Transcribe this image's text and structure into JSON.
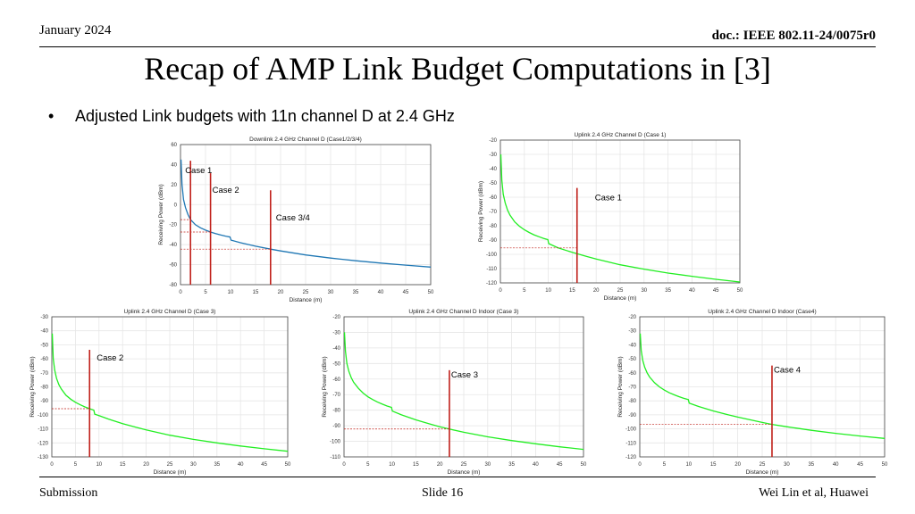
{
  "header": {
    "date": "January 2024",
    "doc": "doc.: IEEE 802.11-24/0075r0"
  },
  "title": "Recap of AMP Link Budget Computations in [3]",
  "bullet": {
    "marker": "•",
    "text": "Adjusted Link budgets with 11n channel D at 2.4 GHz"
  },
  "footer": {
    "left": "Submission",
    "center": "Slide 16",
    "right": "Wei Lin et al, Huawei"
  },
  "colors": {
    "downlink": "#1f77b4",
    "uplink": "#22ee22",
    "marker": "#c0201a",
    "grid": "#e6e6e6"
  },
  "chart_data": [
    {
      "type": "line",
      "title": "Downlink 2.4 GHz Channel D (Case1/2/3/4)",
      "xlabel": "Distance (m)",
      "ylabel": "Receiving Power (dBm)",
      "xlim": [
        0,
        50
      ],
      "ylim": [
        -80,
        60
      ],
      "xticks": [
        0,
        5,
        10,
        15,
        20,
        25,
        30,
        35,
        40,
        45,
        50
      ],
      "yticks": [
        60,
        40,
        20,
        0,
        -20,
        -40,
        -60,
        -80
      ],
      "grid": true,
      "color_key": "downlink",
      "series": [
        {
          "x": [
            0.1,
            0.3,
            0.6,
            1,
            1.5,
            2,
            3,
            4,
            5,
            6,
            7,
            8,
            9,
            9.9,
            10.1,
            12,
            15,
            18,
            20,
            25,
            30,
            35,
            40,
            45,
            50
          ],
          "y": [
            45,
            20,
            5,
            -3,
            -10,
            -15,
            -20.2,
            -23.2,
            -25.5,
            -27.4,
            -29,
            -30.3,
            -31.5,
            -32.4,
            -35.5,
            -38.1,
            -41.6,
            -44.5,
            -46.3,
            -50.3,
            -53.4,
            -56.1,
            -58.4,
            -60.5,
            -62.4
          ]
        }
      ],
      "markers": [
        {
          "label": "Case 1",
          "x": 2,
          "y": -15
        },
        {
          "label": "Case 2",
          "x": 6,
          "y": -27.4
        },
        {
          "label": "Case 3/4",
          "x": 18,
          "y": -44.5
        }
      ]
    },
    {
      "type": "line",
      "title": "Uplink 2.4 GHz Channel D (Case 1)",
      "xlabel": "Distance (m)",
      "ylabel": "Receiving Power (dBm)",
      "xlim": [
        0,
        50
      ],
      "ylim": [
        -120,
        -20
      ],
      "xticks": [
        0,
        5,
        10,
        15,
        20,
        25,
        30,
        35,
        40,
        45,
        50
      ],
      "yticks": [
        -20,
        -30,
        -40,
        -50,
        -60,
        -70,
        -80,
        -90,
        -100,
        -110,
        -120
      ],
      "grid": true,
      "color_key": "uplink",
      "series": [
        {
          "x": [
            0.1,
            0.3,
            0.6,
            1,
            1.5,
            2,
            3,
            4,
            5,
            6,
            7,
            8,
            9,
            9.9,
            10.1,
            12,
            15,
            18,
            20,
            25,
            30,
            35,
            40,
            45,
            50
          ],
          "y": [
            -30,
            -48,
            -58,
            -64,
            -69,
            -72.5,
            -77.3,
            -80.4,
            -82.8,
            -84.7,
            -86.3,
            -87.6,
            -88.8,
            -89.7,
            -92.5,
            -95.4,
            -98.6,
            -101.5,
            -103.3,
            -107.3,
            -110.4,
            -113.1,
            -115.4,
            -117.5,
            -119.4
          ]
        }
      ],
      "markers": [
        {
          "label": "Case 1",
          "x": 16,
          "y": -95.5
        }
      ]
    },
    {
      "type": "line",
      "title": "Uplink 2.4 GHz Channel D (Case 3)",
      "xlabel": "Distance (m)",
      "ylabel": "Receiving Power (dBm)",
      "xlim": [
        0,
        50
      ],
      "ylim": [
        -130,
        -30
      ],
      "xticks": [
        0,
        5,
        10,
        15,
        20,
        25,
        30,
        35,
        40,
        45,
        50
      ],
      "yticks": [
        -30,
        -40,
        -50,
        -60,
        -70,
        -80,
        -90,
        -100,
        -110,
        -120,
        -130
      ],
      "grid": true,
      "color_key": "uplink",
      "series": [
        {
          "x": [
            0.1,
            0.3,
            0.6,
            1,
            1.5,
            2,
            3,
            4,
            5,
            6,
            7,
            8,
            8.9,
            9.1,
            10,
            12,
            15,
            18,
            20,
            25,
            30,
            35,
            40,
            45,
            50
          ],
          "y": [
            -42,
            -60,
            -68,
            -74,
            -78.5,
            -81.5,
            -86,
            -88.8,
            -91,
            -92.8,
            -94.3,
            -95.6,
            -96.6,
            -99.5,
            -100.6,
            -103,
            -106.3,
            -109,
            -110.7,
            -114.5,
            -117.5,
            -120,
            -122.2,
            -124.2,
            -126
          ]
        }
      ],
      "markers": [
        {
          "label": "Case 2",
          "x": 8,
          "y": -95.6
        }
      ]
    },
    {
      "type": "line",
      "title": "Uplink 2.4 GHz Channel D Indoor (Case 3)",
      "xlabel": "Distance (m)",
      "ylabel": "Receiving Power (dBm)",
      "xlim": [
        0,
        50
      ],
      "ylim": [
        -110,
        -20
      ],
      "xticks": [
        0,
        5,
        10,
        15,
        20,
        25,
        30,
        35,
        40,
        45,
        50
      ],
      "yticks": [
        -20,
        -30,
        -40,
        -50,
        -60,
        -70,
        -80,
        -90,
        -100,
        -110
      ],
      "grid": true,
      "color_key": "uplink",
      "series": [
        {
          "x": [
            0.1,
            0.3,
            0.6,
            1,
            1.5,
            2,
            3,
            4,
            5,
            6,
            7,
            8,
            9,
            9.9,
            10.1,
            12,
            15,
            18,
            20,
            22,
            25,
            30,
            35,
            40,
            45,
            50
          ],
          "y": [
            -30,
            -42,
            -50,
            -55,
            -59,
            -62,
            -66,
            -69,
            -71.4,
            -73.2,
            -74.8,
            -76.1,
            -77.3,
            -78.2,
            -80.6,
            -83,
            -86.2,
            -88.9,
            -90.6,
            -92.1,
            -94.2,
            -97.1,
            -99.5,
            -101.6,
            -103.5,
            -105.2
          ]
        }
      ],
      "markers": [
        {
          "label": "Case 3",
          "x": 22,
          "y": -92.1
        }
      ]
    },
    {
      "type": "line",
      "title": "Uplink 2.4 GHz Channel D Indoor (Case4)",
      "xlabel": "Distance (m)",
      "ylabel": "Receiving Power (dBm)",
      "xlim": [
        0,
        50
      ],
      "ylim": [
        -120,
        -20
      ],
      "xticks": [
        0,
        5,
        10,
        15,
        20,
        25,
        30,
        35,
        40,
        45,
        50
      ],
      "yticks": [
        -20,
        -30,
        -40,
        -50,
        -60,
        -70,
        -80,
        -90,
        -100,
        -110,
        -120
      ],
      "grid": true,
      "color_key": "uplink",
      "series": [
        {
          "x": [
            0.1,
            0.3,
            0.6,
            1,
            1.5,
            2,
            3,
            4,
            5,
            6,
            7,
            8,
            9,
            9.9,
            10.1,
            12,
            15,
            18,
            20,
            25,
            27,
            30,
            35,
            40,
            45,
            50
          ],
          "y": [
            -32,
            -44,
            -51,
            -56,
            -60,
            -63,
            -67,
            -70,
            -72.3,
            -74.2,
            -75.7,
            -77,
            -78.2,
            -79.1,
            -81.6,
            -84,
            -87.2,
            -89.9,
            -91.6,
            -95.4,
            -96.8,
            -98.5,
            -101,
            -103.2,
            -105.1,
            -106.8
          ]
        }
      ],
      "markers": [
        {
          "label": "Case 4",
          "x": 27,
          "y": -96.8
        }
      ]
    }
  ]
}
